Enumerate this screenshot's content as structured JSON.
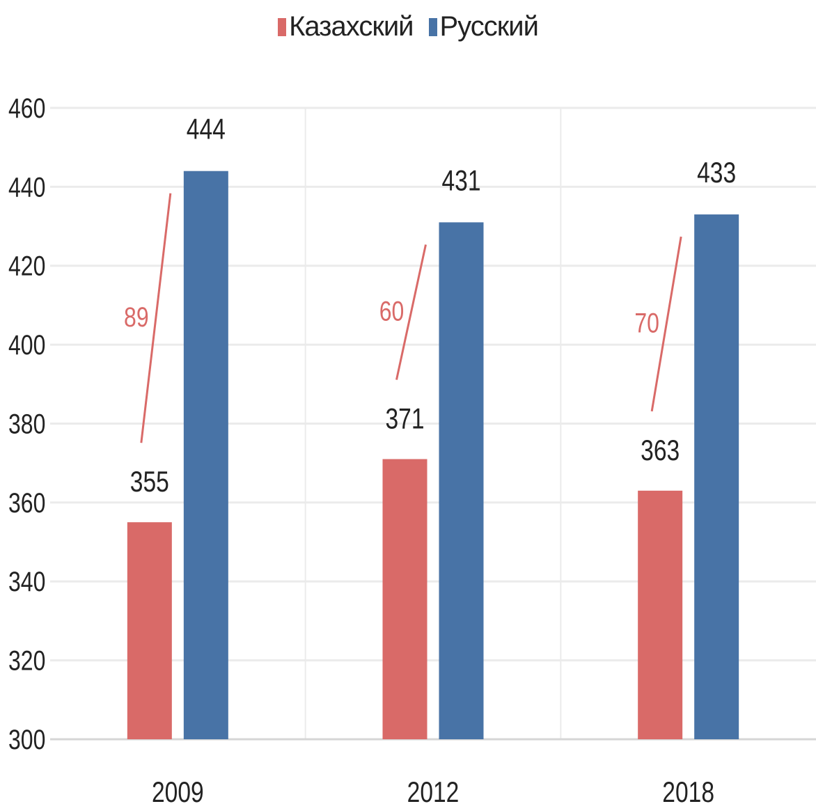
{
  "chart_data": {
    "type": "bar",
    "categories": [
      "2009",
      "2012",
      "2018"
    ],
    "series": [
      {
        "name": "Казахский",
        "color": "#d96a68",
        "values": [
          355,
          371,
          363
        ]
      },
      {
        "name": "Русский",
        "color": "#4873a6",
        "values": [
          444,
          431,
          433
        ]
      }
    ],
    "ylim": [
      300,
      460
    ],
    "yticks": [
      300,
      320,
      340,
      360,
      380,
      400,
      420,
      440,
      460
    ],
    "grid": true,
    "legend_position": "top-center",
    "gap_labels": [
      "89",
      "60",
      "70"
    ],
    "gap_color": "#d96a68"
  }
}
